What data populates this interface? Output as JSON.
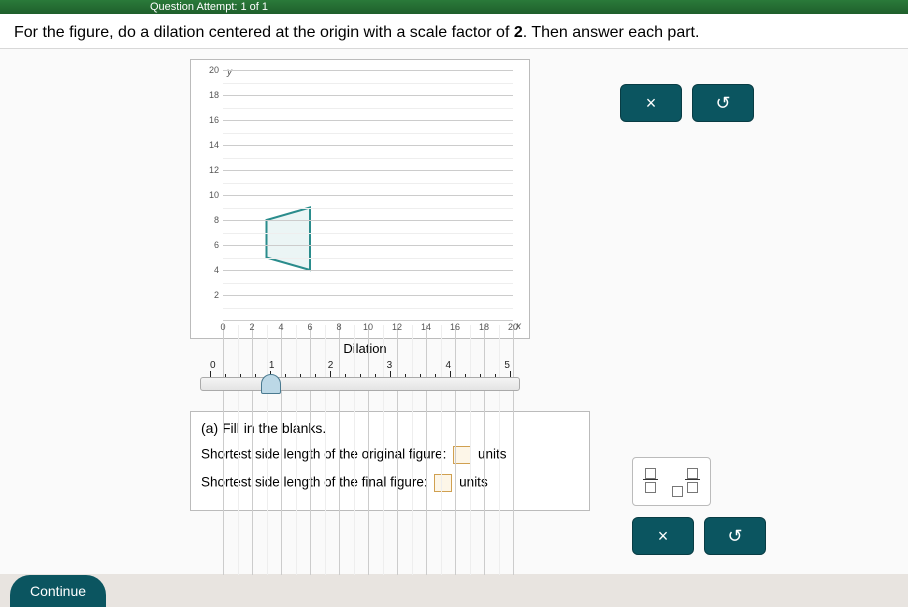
{
  "header": {
    "attempt_text": "Question Attempt: 1 of 1"
  },
  "prompt": {
    "prefix": "For the figure, do a dilation centered at the origin with a scale factor of ",
    "scale_factor": "2",
    "suffix": ". Then answer each part."
  },
  "chart": {
    "y_title": "y",
    "x_title": "x",
    "x_max": 20,
    "y_max": 20,
    "x_ticks": [
      0,
      2,
      4,
      6,
      8,
      10,
      12,
      14,
      16,
      18,
      20
    ],
    "y_ticks": [
      0,
      2,
      4,
      6,
      8,
      10,
      12,
      14,
      16,
      18,
      20
    ],
    "grid_color": "#dddddd",
    "background": "#ffffff",
    "shape": {
      "type": "polygon",
      "points": [
        [
          3,
          5
        ],
        [
          6,
          4
        ],
        [
          6,
          9
        ],
        [
          3,
          8
        ]
      ],
      "stroke": "#2a8c8c",
      "stroke_width": 2,
      "fill": "rgba(120,190,190,0.15)"
    }
  },
  "slider": {
    "label": "Dilation",
    "scale": [
      "0",
      "1",
      "2",
      "3",
      "4",
      "5"
    ],
    "value": 1,
    "max": 5,
    "track_width": 320
  },
  "part_a": {
    "header": "(a)  Fill in the blanks.",
    "line1_label": "Shortest side length of the original figure:",
    "line2_label": "Shortest side length of the final figure:",
    "units": "units"
  },
  "buttons": {
    "close": "×",
    "reset": "↺"
  },
  "continue_label": "Continue"
}
